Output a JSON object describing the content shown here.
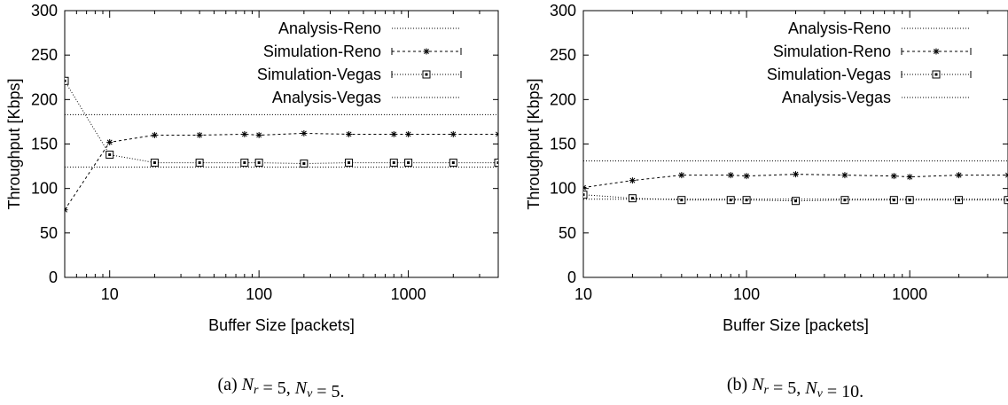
{
  "chart_data": [
    {
      "type": "line",
      "xscale": "log",
      "xlim": [
        5,
        4000
      ],
      "ylim": [
        0,
        300
      ],
      "xlabel": "Buffer Size [packets]",
      "ylabel": "Throughput [Kbps]",
      "xticks": [
        "10",
        "100",
        "1000"
      ],
      "yticks": [
        "0",
        "50",
        "100",
        "150",
        "200",
        "250",
        "300"
      ],
      "legend_position": "top-right",
      "caption": "(a) N_r = 5, N_v = 5.",
      "series": [
        {
          "name": "Analysis-Reno",
          "style": "dotted-line",
          "color": "#000000",
          "value": 183
        },
        {
          "name": "Simulation-Reno",
          "style": "dashed-star",
          "color": "#000000",
          "x": [
            5,
            10,
            20,
            40,
            80,
            100,
            200,
            400,
            800,
            1000,
            2000,
            4000
          ],
          "y": [
            76,
            152,
            160,
            160,
            161,
            160,
            162,
            161,
            161,
            161,
            161,
            161
          ]
        },
        {
          "name": "Simulation-Vegas",
          "style": "dotted-square",
          "color": "#000000",
          "x": [
            5,
            10,
            20,
            40,
            80,
            100,
            200,
            400,
            800,
            1000,
            2000,
            4000
          ],
          "y": [
            221,
            138,
            129,
            129,
            129,
            129,
            128,
            129,
            129,
            129,
            129,
            129
          ]
        },
        {
          "name": "Analysis-Vegas",
          "style": "dotted-line",
          "color": "#000000",
          "value": 124
        }
      ]
    },
    {
      "type": "line",
      "xscale": "log",
      "xlim": [
        10,
        4000
      ],
      "ylim": [
        0,
        300
      ],
      "xlabel": "Buffer Size [packets]",
      "ylabel": "Throughput [Kbps]",
      "xticks": [
        "10",
        "100",
        "1000"
      ],
      "yticks": [
        "0",
        "50",
        "100",
        "150",
        "200",
        "250",
        "300"
      ],
      "legend_position": "top-right",
      "caption": "(b) N_r = 5, N_v = 10.",
      "series": [
        {
          "name": "Analysis-Reno",
          "style": "dotted-line",
          "color": "#000000",
          "value": 131
        },
        {
          "name": "Simulation-Reno",
          "style": "dashed-star",
          "color": "#000000",
          "x": [
            10,
            20,
            40,
            80,
            100,
            200,
            400,
            800,
            1000,
            2000,
            4000
          ],
          "y": [
            101,
            109,
            115,
            115,
            114,
            116,
            115,
            114,
            113,
            115,
            115
          ]
        },
        {
          "name": "Simulation-Vegas",
          "style": "dotted-square",
          "color": "#000000",
          "x": [
            10,
            20,
            40,
            80,
            100,
            200,
            400,
            800,
            1000,
            2000,
            4000
          ],
          "y": [
            93,
            89,
            87,
            87,
            87,
            86,
            87,
            87,
            87,
            87,
            87
          ]
        },
        {
          "name": "Analysis-Vegas",
          "style": "dotted-line",
          "color": "#000000",
          "value": 88
        }
      ]
    }
  ]
}
